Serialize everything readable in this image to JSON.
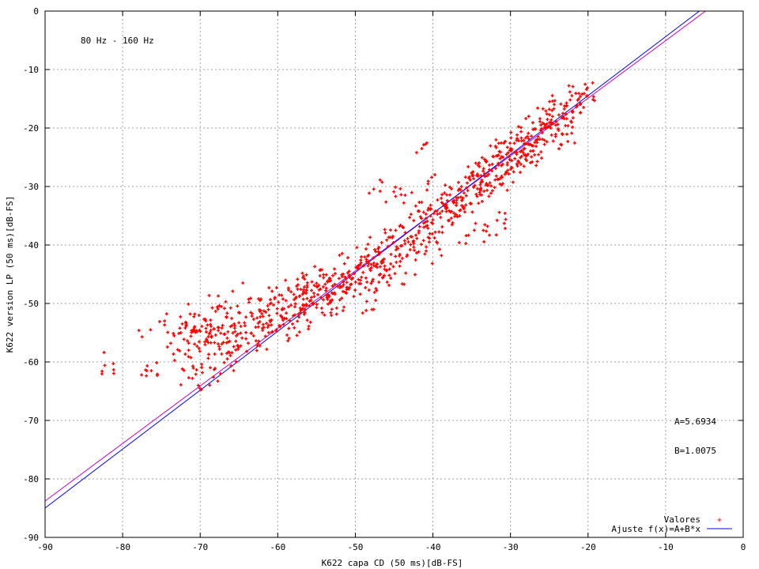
{
  "chart_data": {
    "type": "scatter",
    "annotation_band": "80 Hz - 160 Hz",
    "xlabel": "K622 capa CD (50 ms)[dB-FS]",
    "ylabel": "K622 version LP (50 ms)[dB-FS]",
    "xlim": [
      -90,
      0
    ],
    "ylim": [
      -90,
      0
    ],
    "xticks": [
      -90,
      -80,
      -70,
      -60,
      -50,
      -40,
      -30,
      -20,
      -10,
      0
    ],
    "yticks": [
      -90,
      -80,
      -70,
      -60,
      -50,
      -40,
      -30,
      -20,
      -10,
      0
    ],
    "grid": true,
    "legend_position": "bottom-right",
    "fit_params": {
      "A": "A=5.6934",
      "B": "B=1.0075"
    },
    "series": [
      {
        "name": "Valores",
        "kind": "points",
        "color": "#ff0000",
        "points": [
          [
            -81.2,
            -60.3
          ],
          [
            -76.3,
            -61.5
          ],
          [
            -76.4,
            -54.5
          ],
          [
            -74.6,
            -53.0
          ],
          [
            -73.8,
            -56.8
          ],
          [
            -72.9,
            -57.9
          ],
          [
            -72.5,
            -55.0
          ],
          [
            -72.3,
            -61.2
          ],
          [
            -71.8,
            -53.4
          ],
          [
            -71.5,
            -59.1
          ],
          [
            -71.2,
            -55.6
          ],
          [
            -71.0,
            -62.8
          ],
          [
            -70.7,
            -51.8
          ],
          [
            -70.4,
            -57.3
          ],
          [
            -70.1,
            -54.6
          ],
          [
            -69.8,
            -60.4
          ],
          [
            -69.5,
            -52.7
          ],
          [
            -69.2,
            -56.1
          ],
          [
            -68.9,
            -58.7
          ],
          [
            -68.6,
            -53.9
          ],
          [
            -68.3,
            -62.6
          ],
          [
            -68.0,
            -55.4
          ],
          [
            -67.8,
            -50.6
          ],
          [
            -67.5,
            -57.8
          ],
          [
            -67.2,
            -54.2
          ],
          [
            -66.9,
            -60.1
          ],
          [
            -66.6,
            -52.4
          ],
          [
            -66.4,
            -56.6
          ],
          [
            -66.1,
            -58.9
          ],
          [
            -65.8,
            -47.9
          ],
          [
            -65.5,
            -54.8
          ],
          [
            -65.2,
            -57.2
          ],
          [
            -64.9,
            -51.6
          ],
          [
            -64.6,
            -55.9
          ],
          [
            -64.3,
            -53.3
          ],
          [
            -64.0,
            -58.2
          ],
          [
            -63.7,
            -49.8
          ],
          [
            -63.4,
            -55.1
          ],
          [
            -63.1,
            -52.7
          ],
          [
            -62.8,
            -56.4
          ],
          [
            -62.5,
            -54.0
          ],
          [
            -62.2,
            -51.2
          ],
          [
            -61.9,
            -53.6
          ],
          [
            -61.6,
            -55.6
          ],
          [
            -61.3,
            -50.4
          ],
          [
            -61.0,
            -52.9
          ],
          [
            -60.7,
            -54.9
          ],
          [
            -60.4,
            -49.2
          ],
          [
            -60.1,
            -51.7
          ],
          [
            -59.8,
            -53.8
          ],
          [
            -59.5,
            -48.6
          ],
          [
            -59.2,
            -50.9
          ],
          [
            -58.9,
            -52.6
          ],
          [
            -58.6,
            -47.7
          ],
          [
            -58.3,
            -50.3
          ],
          [
            -58.0,
            -52.1
          ],
          [
            -57.7,
            -49.1
          ],
          [
            -57.4,
            -46.8
          ],
          [
            -57.1,
            -50.8
          ],
          [
            -56.8,
            -48.4
          ],
          [
            -56.5,
            -51.6
          ],
          [
            -56.2,
            -47.2
          ],
          [
            -55.9,
            -49.6
          ],
          [
            -55.6,
            -46.3
          ],
          [
            -55.3,
            -48.8
          ],
          [
            -55.0,
            -50.7
          ],
          [
            -54.7,
            -46.9
          ],
          [
            -54.4,
            -49.0
          ],
          [
            -54.1,
            -45.6
          ],
          [
            -53.8,
            -47.8
          ],
          [
            -53.5,
            -50.1
          ],
          [
            -53.2,
            -46.1
          ],
          [
            -52.9,
            -48.3
          ],
          [
            -52.6,
            -44.9
          ],
          [
            -52.3,
            -47.1
          ],
          [
            -52.0,
            -49.4
          ],
          [
            -51.7,
            -45.4
          ],
          [
            -51.4,
            -43.2
          ],
          [
            -51.1,
            -47.6
          ],
          [
            -50.8,
            -44.5
          ],
          [
            -50.5,
            -46.7
          ],
          [
            -50.2,
            -48.8
          ],
          [
            -49.9,
            -43.8
          ],
          [
            -49.6,
            -45.9
          ],
          [
            -49.3,
            -42.6
          ],
          [
            -49.0,
            -44.7
          ],
          [
            -48.7,
            -47.3
          ],
          [
            -48.4,
            -41.9
          ],
          [
            -48.1,
            -44.1
          ],
          [
            -47.8,
            -46.2
          ],
          [
            -47.5,
            -40.8
          ],
          [
            -47.2,
            -43.3
          ],
          [
            -46.9,
            -45.1
          ],
          [
            -46.6,
            -39.6
          ],
          [
            -46.3,
            -42.4
          ],
          [
            -46.0,
            -44.4
          ],
          [
            -45.7,
            -38.7
          ],
          [
            -45.4,
            -41.6
          ],
          [
            -45.1,
            -43.7
          ],
          [
            -44.8,
            -37.5
          ],
          [
            -44.5,
            -40.6
          ],
          [
            -44.2,
            -42.8
          ],
          [
            -43.9,
            -36.9
          ],
          [
            -43.6,
            -39.8
          ],
          [
            -43.3,
            -41.7
          ],
          [
            -43.0,
            -35.3
          ],
          [
            -42.7,
            -38.6
          ],
          [
            -42.4,
            -40.9
          ],
          [
            -42.1,
            -24.2
          ],
          [
            -41.8,
            -37.6
          ],
          [
            -41.5,
            -39.9
          ],
          [
            -41.2,
            -34.4
          ],
          [
            -40.9,
            -36.8
          ],
          [
            -40.6,
            -38.7
          ],
          [
            -40.3,
            -33.2
          ],
          [
            -40.0,
            -35.7
          ],
          [
            -39.7,
            -37.8
          ],
          [
            -39.4,
            -32.3
          ],
          [
            -39.1,
            -34.6
          ],
          [
            -38.8,
            -36.9
          ],
          [
            -38.5,
            -31.1
          ],
          [
            -38.2,
            -33.7
          ],
          [
            -37.9,
            -35.8
          ],
          [
            -37.6,
            -30.4
          ],
          [
            -37.3,
            -32.6
          ],
          [
            -37.0,
            -34.8
          ],
          [
            -36.7,
            -29.3
          ],
          [
            -36.4,
            -31.8
          ],
          [
            -36.1,
            -33.6
          ],
          [
            -35.8,
            -28.4
          ],
          [
            -35.5,
            -30.7
          ],
          [
            -35.2,
            -32.9
          ],
          [
            -34.9,
            -27.6
          ],
          [
            -34.6,
            -29.8
          ],
          [
            -34.3,
            -31.7
          ],
          [
            -34.0,
            -26.6
          ],
          [
            -33.7,
            -28.9
          ],
          [
            -33.4,
            -30.8
          ],
          [
            -33.1,
            -25.8
          ],
          [
            -32.8,
            -27.9
          ],
          [
            -32.5,
            -29.9
          ],
          [
            -32.2,
            -24.9
          ],
          [
            -31.9,
            -26.9
          ],
          [
            -31.6,
            -28.8
          ],
          [
            -31.3,
            -24.1
          ],
          [
            -31.0,
            -26.2
          ],
          [
            -30.7,
            -27.9
          ],
          [
            -30.4,
            -23.3
          ],
          [
            -30.1,
            -25.4
          ],
          [
            -29.8,
            -26.8
          ],
          [
            -29.5,
            -22.6
          ],
          [
            -29.2,
            -24.5
          ],
          [
            -28.9,
            -25.9
          ],
          [
            -28.6,
            -21.7
          ],
          [
            -28.3,
            -23.6
          ],
          [
            -28.0,
            -24.8
          ],
          [
            -27.7,
            -20.9
          ],
          [
            -27.4,
            -22.8
          ],
          [
            -27.1,
            -23.9
          ],
          [
            -26.8,
            -20.2
          ],
          [
            -26.5,
            -21.9
          ],
          [
            -26.2,
            -18.4
          ],
          [
            -25.9,
            -20.8
          ],
          [
            -25.6,
            -22.1
          ],
          [
            -25.3,
            -17.6
          ],
          [
            -25.0,
            -19.8
          ],
          [
            -24.7,
            -21.2
          ],
          [
            -24.4,
            -16.7
          ],
          [
            -24.1,
            -18.9
          ],
          [
            -23.8,
            -20.4
          ],
          [
            -23.5,
            -15.9
          ],
          [
            -23.2,
            -18.1
          ],
          [
            -22.9,
            -19.6
          ],
          [
            -22.6,
            -22.3
          ],
          [
            -22.3,
            -15.2
          ],
          [
            -22.0,
            -17.3
          ],
          [
            -21.5,
            -16.4
          ],
          [
            -21.0,
            -14.6
          ],
          [
            -20.5,
            -14.1
          ],
          [
            -20.2,
            -13.4
          ],
          [
            -30.8,
            -36.3
          ],
          [
            -43.5,
            -44.8
          ],
          [
            -48.6,
            -51.2
          ],
          [
            -51.2,
            -45.8
          ],
          [
            -56.0,
            -53.9
          ],
          [
            -58.8,
            -55.4
          ],
          [
            -44.1,
            -31.4
          ],
          [
            -46.8,
            -30.8
          ],
          [
            -40.6,
            -29.1
          ],
          [
            -38.9,
            -41.8
          ],
          [
            -36.6,
            -39.6
          ],
          [
            -33.5,
            -37.5
          ]
        ]
      },
      {
        "name": "Ajuste f(x)=A+B*x",
        "kind": "fit",
        "color": "#0000ff",
        "slope": 1.0075,
        "intercept": 5.6934
      }
    ]
  }
}
